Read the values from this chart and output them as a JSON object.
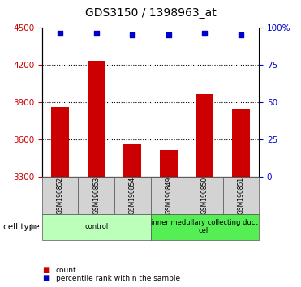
{
  "title": "GDS3150 / 1398963_at",
  "samples": [
    "GSM190852",
    "GSM190853",
    "GSM190854",
    "GSM190849",
    "GSM190850",
    "GSM190851"
  ],
  "counts": [
    3860,
    4230,
    3560,
    3510,
    3960,
    3840
  ],
  "percentile_ranks": [
    96,
    96,
    95,
    95,
    96,
    95
  ],
  "ylim_left": [
    3300,
    4500
  ],
  "ylim_right": [
    0,
    100
  ],
  "yticks_left": [
    3300,
    3600,
    3900,
    4200,
    4500
  ],
  "yticks_right": [
    0,
    25,
    50,
    75,
    100
  ],
  "bar_color": "#cc0000",
  "dot_color": "#0000cc",
  "bar_width": 0.5,
  "group0_label": "control",
  "group0_color": "#bbffbb",
  "group1_label": "inner medullary collecting duct\ncell",
  "group1_color": "#55ee55",
  "cell_type_label": "cell type",
  "legend_count_color": "#cc0000",
  "legend_count_label": "count",
  "legend_pct_color": "#0000cc",
  "legend_pct_label": "percentile rank within the sample",
  "background_color": "#ffffff",
  "tick_color_left": "#cc0000",
  "tick_color_right": "#0000cc"
}
